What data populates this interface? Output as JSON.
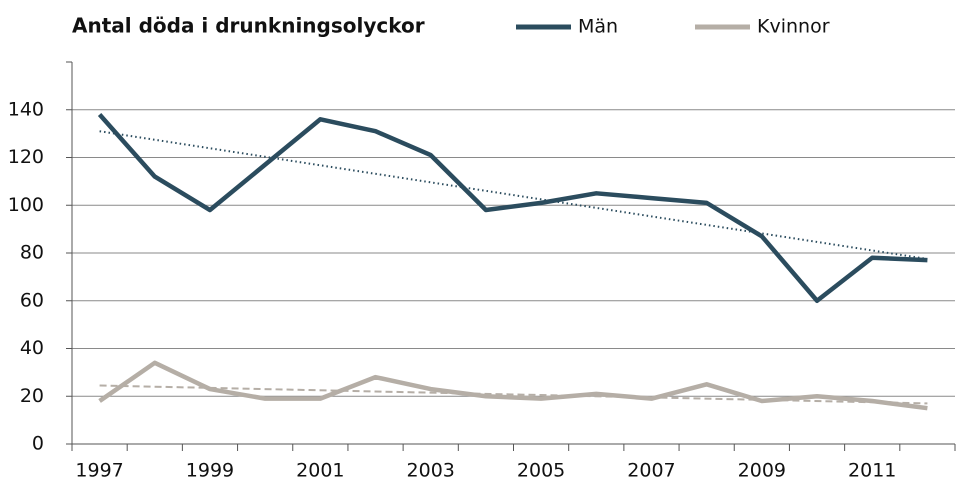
{
  "chart_data": {
    "type": "line",
    "title": "Antal döda i drunkningsolyckor",
    "categories": [
      "1997",
      null,
      "1999",
      null,
      "2001",
      null,
      "2003",
      null,
      "2005",
      null,
      "2007",
      null,
      "2009",
      null,
      "2011",
      null
    ],
    "series": [
      {
        "name": "Män",
        "color": "#2b4c5e",
        "values": [
          138,
          112,
          98,
          117,
          136,
          131,
          121,
          98,
          101,
          105,
          103,
          101,
          87,
          60,
          78,
          77
        ],
        "trend": [
          131,
          77.5
        ],
        "trend_style": "dotted"
      },
      {
        "name": "Kvinnor",
        "color": "#b5aea6",
        "values": [
          18,
          34,
          23,
          19,
          19,
          28,
          23,
          20,
          19,
          21,
          19,
          25,
          18,
          20,
          18,
          15
        ],
        "trend": [
          24.5,
          17
        ],
        "trend_style": "dashed"
      }
    ],
    "ylim": [
      0,
      160
    ],
    "yticks": [
      0,
      20,
      40,
      60,
      80,
      100,
      120,
      140
    ],
    "grid": true,
    "legend": "top"
  }
}
